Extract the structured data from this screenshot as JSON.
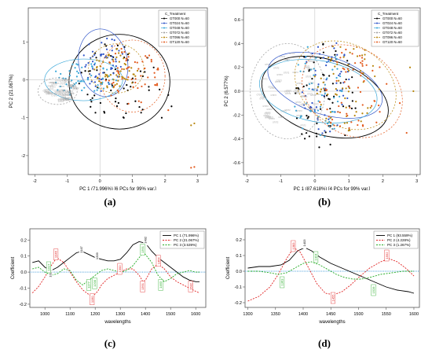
{
  "chart_data": [
    {
      "type": "scatter",
      "caption": "(a)",
      "xlabel": "PC 1 (71.996%)   [6 PCs for 99% var.]",
      "ylabel": "PC 2 (21.067%)",
      "xlim": [
        -2.2,
        3.3
      ],
      "ylim": [
        -2.5,
        1.9
      ],
      "xticks": [
        "-2",
        "-1",
        "0",
        "1",
        "2",
        "3"
      ],
      "xtick_values": [
        -2,
        -1,
        0,
        1,
        2,
        3
      ],
      "yticks": [
        "-2",
        "-1",
        "0",
        "1"
      ],
      "ytick_values": [
        -2,
        -1,
        0,
        1
      ],
      "legend_title": "C_Treatment",
      "legend_position": "top-right",
      "series": [
        {
          "name": "GT000  N=60",
          "color": "#000000"
        },
        {
          "name": "GT024  N=60",
          "color": "#2f55c9"
        },
        {
          "name": "GT048  N=60",
          "color": "#3aa7d8"
        },
        {
          "name": "GT072  N=60",
          "color": "#9a9a9a"
        },
        {
          "name": "GT096  N=60",
          "color": "#b8860b"
        },
        {
          "name": "GT120  N=60",
          "color": "#e35a1d"
        }
      ]
    },
    {
      "type": "scatter",
      "caption": "(b)",
      "xlabel": "PC 1 (87.618%)   [4 PCs for 99% var.]",
      "ylabel": "PC 2 (6.577%)",
      "xlim": [
        -2.1,
        3.1
      ],
      "ylim": [
        -0.7,
        0.7
      ],
      "xticks": [
        "-2",
        "-1",
        "0",
        "1",
        "2",
        "3"
      ],
      "xtick_values": [
        -2,
        -1,
        0,
        1,
        2,
        3
      ],
      "yticks": [
        "-0.6",
        "-0.4",
        "-0.2",
        "0.0",
        "0.2",
        "0.4",
        "0.6"
      ],
      "ytick_values": [
        -0.6,
        -0.4,
        -0.2,
        0.0,
        0.2,
        0.4,
        0.6
      ],
      "legend_title": "C_Treatment",
      "legend_position": "top-right",
      "series": [
        {
          "name": "GT000  N=60",
          "color": "#000000"
        },
        {
          "name": "GT024  N=60",
          "color": "#2f55c9"
        },
        {
          "name": "GT048  N=60",
          "color": "#3aa7d8"
        },
        {
          "name": "GT072  N=60",
          "color": "#9a9a9a"
        },
        {
          "name": "GT096  N=60",
          "color": "#b8860b"
        },
        {
          "name": "GT120  N=60",
          "color": "#e35a1d"
        }
      ]
    },
    {
      "type": "line",
      "caption": "(c)",
      "xlabel": "wavelengths",
      "ylabel": "Coefficient",
      "xlim": [
        940,
        1640
      ],
      "ylim": [
        -0.22,
        0.27
      ],
      "xticks": [
        "1000",
        "1100",
        "1200",
        "1300",
        "1400",
        "1500",
        "1600"
      ],
      "xtick_values": [
        1000,
        1100,
        1200,
        1300,
        1400,
        1500,
        1600
      ],
      "yticks": [
        "-0.2",
        "-0.1",
        "0.0",
        "0.1",
        "0.2"
      ],
      "ytick_values": [
        -0.2,
        -0.1,
        0.0,
        0.1,
        0.2
      ],
      "legend_position": "top-right",
      "series": [
        {
          "name": "PC 1 (71.996%)",
          "color": "#000000",
          "dash": false,
          "x": [
            950,
            975,
            1000,
            1025,
            1050,
            1075,
            1100,
            1125,
            1147,
            1175,
            1200,
            1225,
            1250,
            1275,
            1300,
            1325,
            1350,
            1375,
            1400,
            1425,
            1450,
            1475,
            1500,
            1525,
            1550,
            1575,
            1600,
            1615
          ],
          "y": [
            0.06,
            0.07,
            0.03,
            0.01,
            0.03,
            0.06,
            0.09,
            0.12,
            0.13,
            0.11,
            0.09,
            0.08,
            0.07,
            0.07,
            0.08,
            0.12,
            0.17,
            0.19,
            0.18,
            0.13,
            0.09,
            0.06,
            0.03,
            0.0,
            -0.03,
            -0.05,
            -0.06,
            -0.06
          ]
        },
        {
          "name": "PC 2 (21.067%)",
          "color": "#e02020",
          "dash": true,
          "x": [
            950,
            975,
            1000,
            1025,
            1047,
            1075,
            1100,
            1125,
            1150,
            1175,
            1190,
            1210,
            1225,
            1250,
            1275,
            1300,
            1325,
            1350,
            1375,
            1390,
            1400,
            1425,
            1450,
            1475,
            1500,
            1525,
            1550,
            1575,
            1600,
            1615
          ],
          "y": [
            -0.13,
            -0.09,
            -0.03,
            0.04,
            0.09,
            0.06,
            0.0,
            -0.06,
            -0.11,
            -0.14,
            -0.15,
            -0.12,
            -0.08,
            -0.04,
            -0.02,
            0.0,
            0.02,
            0.02,
            -0.02,
            -0.06,
            -0.05,
            0.02,
            0.05,
            0.02,
            -0.03,
            -0.06,
            -0.08,
            -0.1,
            -0.12,
            -0.13
          ]
        },
        {
          "name": "PC 3 (3.539%)",
          "color": "#22aa22",
          "dash": true,
          "x": [
            950,
            975,
            1000,
            1025,
            1050,
            1075,
            1100,
            1125,
            1150,
            1175,
            1200,
            1225,
            1250,
            1275,
            1300,
            1325,
            1350,
            1375,
            1390,
            1400,
            1425,
            1450,
            1475,
            1500,
            1525,
            1550,
            1575,
            1600,
            1615
          ],
          "y": [
            0.02,
            0.03,
            0.0,
            -0.02,
            -0.01,
            0.02,
            0.01,
            -0.05,
            -0.08,
            -0.05,
            -0.02,
            0.01,
            0.02,
            0.01,
            0.0,
            0.01,
            0.04,
            0.09,
            0.12,
            0.11,
            0.06,
            -0.02,
            -0.06,
            -0.04,
            -0.01,
            0.0,
            0.01,
            0.0,
            0.0
          ]
        }
      ],
      "peak_labels": [
        {
          "text": "1147",
          "x": 1147,
          "y": 0.14,
          "color": "#000000"
        },
        {
          "text": "1209",
          "x": 1209,
          "y": 0.1,
          "color": "#000000"
        },
        {
          "text": "1024",
          "x": 1024,
          "y": -0.01,
          "color": "#000000"
        },
        {
          "text": "1402",
          "x": 1402,
          "y": 0.2,
          "color": "#000000"
        },
        {
          "text": "1046",
          "x": 1046,
          "y": 0.11,
          "color": "#e02020"
        },
        {
          "text": "1190",
          "x": 1190,
          "y": -0.17,
          "color": "#e02020"
        },
        {
          "text": "1300",
          "x": 1300,
          "y": 0.02,
          "color": "#e02020"
        },
        {
          "text": "1391",
          "x": 1391,
          "y": -0.09,
          "color": "#e02020"
        },
        {
          "text": "1454",
          "x": 1454,
          "y": 0.07,
          "color": "#e02020"
        },
        {
          "text": "1582",
          "x": 1582,
          "y": -0.09,
          "color": "#e02020"
        },
        {
          "text": "1017",
          "x": 1017,
          "y": 0.03,
          "color": "#22aa22"
        },
        {
          "text": "1177",
          "x": 1177,
          "y": -0.08,
          "color": "#22aa22"
        },
        {
          "text": "1200",
          "x": 1200,
          "y": -0.07,
          "color": "#22aa22"
        },
        {
          "text": "1391",
          "x": 1391,
          "y": 0.14,
          "color": "#22aa22"
        },
        {
          "text": "1463",
          "x": 1463,
          "y": -0.08,
          "color": "#22aa22"
        }
      ]
    },
    {
      "type": "line",
      "caption": "(d)",
      "xlabel": "wavelengths",
      "ylabel": "Coefficient",
      "xlim": [
        1295,
        1610
      ],
      "ylim": [
        -0.23,
        0.27
      ],
      "xticks": [
        "1300",
        "1350",
        "1400",
        "1450",
        "1500",
        "1550",
        "1600"
      ],
      "xtick_values": [
        1300,
        1350,
        1400,
        1450,
        1500,
        1550,
        1600
      ],
      "yticks": [
        "-0.2",
        "-0.1",
        "0.0",
        "0.1",
        "0.2"
      ],
      "ytick_values": [
        -0.2,
        -0.1,
        0.0,
        0.1,
        0.2
      ],
      "legend_position": "top-right",
      "series": [
        {
          "name": "PC 1 (93.559%)",
          "color": "#000000",
          "dash": false,
          "x": [
            1300,
            1320,
            1340,
            1360,
            1375,
            1390,
            1403,
            1415,
            1430,
            1450,
            1470,
            1490,
            1510,
            1530,
            1550,
            1570,
            1590,
            1600
          ],
          "y": [
            0.02,
            0.03,
            0.03,
            0.04,
            0.07,
            0.13,
            0.15,
            0.13,
            0.09,
            0.05,
            0.02,
            -0.01,
            -0.04,
            -0.07,
            -0.1,
            -0.12,
            -0.13,
            -0.14
          ]
        },
        {
          "name": "PC 2 (4.228%)",
          "color": "#e02020",
          "dash": true,
          "x": [
            1300,
            1320,
            1340,
            1355,
            1370,
            1383,
            1395,
            1410,
            1425,
            1440,
            1455,
            1470,
            1485,
            1500,
            1520,
            1540,
            1555,
            1570,
            1585,
            1600
          ],
          "y": [
            -0.19,
            -0.16,
            -0.1,
            -0.02,
            0.08,
            0.15,
            0.12,
            0.02,
            -0.08,
            -0.14,
            -0.15,
            -0.13,
            -0.09,
            -0.04,
            0.02,
            0.06,
            0.08,
            0.06,
            0.02,
            -0.03
          ]
        },
        {
          "name": "PC 3 (1.267%)",
          "color": "#22aa22",
          "dash": true,
          "x": [
            1300,
            1320,
            1340,
            1355,
            1370,
            1385,
            1400,
            1415,
            1430,
            1445,
            1460,
            1475,
            1490,
            1505,
            1520,
            1540,
            1560,
            1580,
            1600
          ],
          "y": [
            0.0,
            0.0,
            -0.01,
            -0.02,
            -0.01,
            0.02,
            0.05,
            0.06,
            0.04,
            0.01,
            -0.02,
            -0.04,
            -0.05,
            -0.05,
            -0.04,
            -0.02,
            -0.01,
            0.0,
            0.0
          ]
        }
      ],
      "peak_labels": [
        {
          "text": "1403",
          "x": 1403,
          "y": 0.18,
          "color": "#000000"
        },
        {
          "text": "1383",
          "x": 1383,
          "y": 0.16,
          "color": "#e02020"
        },
        {
          "text": "1455",
          "x": 1455,
          "y": -0.17,
          "color": "#e02020"
        },
        {
          "text": "1552",
          "x": 1552,
          "y": 0.1,
          "color": "#e02020"
        },
        {
          "text": "1363",
          "x": 1363,
          "y": -0.07,
          "color": "#22aa22"
        },
        {
          "text": "1424",
          "x": 1424,
          "y": 0.09,
          "color": "#22aa22"
        },
        {
          "text": "1528",
          "x": 1528,
          "y": -0.12,
          "color": "#22aa22"
        }
      ]
    }
  ]
}
